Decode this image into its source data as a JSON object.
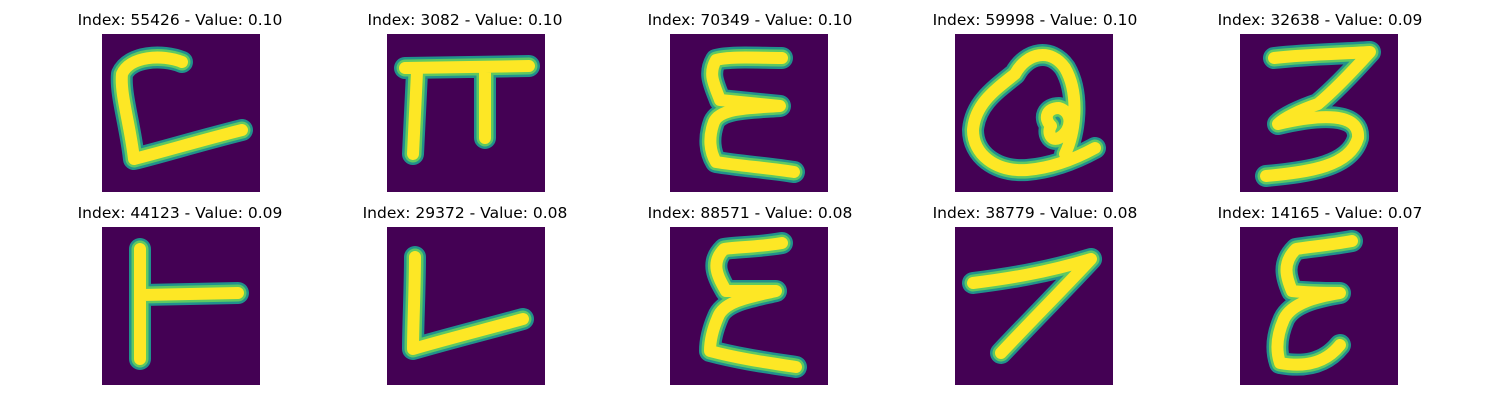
{
  "figure": {
    "colors": {
      "background": "#440154",
      "edge": "#21918c",
      "mid": "#5ec962",
      "stroke": "#fde725"
    },
    "panels": [
      {
        "title": "Index: 55426 - Value: 0.10",
        "glyph": "hook-c"
      },
      {
        "title": "Index: 3082 - Value: 0.10",
        "glyph": "pi"
      },
      {
        "title": "Index: 70349 - Value: 0.10",
        "glyph": "epsilon"
      },
      {
        "title": "Index: 59998 - Value: 0.10",
        "glyph": "loop-a"
      },
      {
        "title": "Index: 32638 - Value: 0.09",
        "glyph": "three"
      },
      {
        "title": "Index: 44123 - Value: 0.09",
        "glyph": "t-rotated"
      },
      {
        "title": "Index: 29372 - Value: 0.08",
        "glyph": "l-shape"
      },
      {
        "title": "Index: 88571 - Value: 0.08",
        "glyph": "epsilon"
      },
      {
        "title": "Index: 38779 - Value: 0.08",
        "glyph": "seven"
      },
      {
        "title": "Index: 14165 - Value: 0.07",
        "glyph": "epsilon"
      }
    ]
  }
}
